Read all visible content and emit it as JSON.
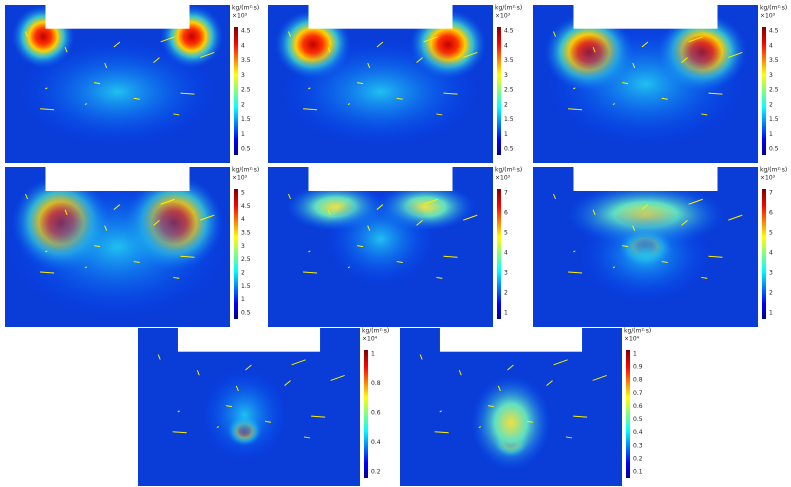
{
  "panels": [
    {
      "unit": "kg/(m²·s)",
      "exponent": "×10³",
      "ticks": [
        "4.5",
        "4",
        "3.5",
        "3",
        "2.5",
        "2",
        "1.5",
        "1",
        "0.5"
      ]
    },
    {
      "unit": "kg/(m²·s)",
      "exponent": "×10³",
      "ticks": [
        "4.5",
        "4",
        "3.5",
        "3",
        "2.5",
        "2",
        "1.5",
        "1",
        "0.5"
      ]
    },
    {
      "unit": "kg/(m²·s)",
      "exponent": "×10³",
      "ticks": [
        "4.5",
        "4",
        "3.5",
        "3",
        "2.5",
        "2",
        "1.5",
        "1",
        "0.5"
      ]
    },
    {
      "unit": "kg/(m²·s)",
      "exponent": "×10³",
      "ticks": [
        "5",
        "4.5",
        "4",
        "3.5",
        "3",
        "2.5",
        "2",
        "1.5",
        "1",
        "0.5"
      ]
    },
    {
      "unit": "kg/(m²·s)",
      "exponent": "×10³",
      "ticks": [
        "7",
        "6",
        "5",
        "4",
        "3",
        "2",
        "1"
      ]
    },
    {
      "unit": "kg/(m²·s)",
      "exponent": "×10³",
      "ticks": [
        "7",
        "6",
        "5",
        "4",
        "3",
        "2",
        "1"
      ]
    },
    {
      "unit": "kg/(m²·s)",
      "exponent": "×10⁴",
      "ticks": [
        "1",
        "0.8",
        "0.6",
        "0.4",
        "0.2"
      ]
    },
    {
      "unit": "kg/(m²·s)",
      "exponent": "×10⁴",
      "ticks": [
        "1",
        "0.9",
        "0.8",
        "0.7",
        "0.6",
        "0.5",
        "0.4",
        "0.3",
        "0.2",
        "0.1"
      ]
    }
  ]
}
